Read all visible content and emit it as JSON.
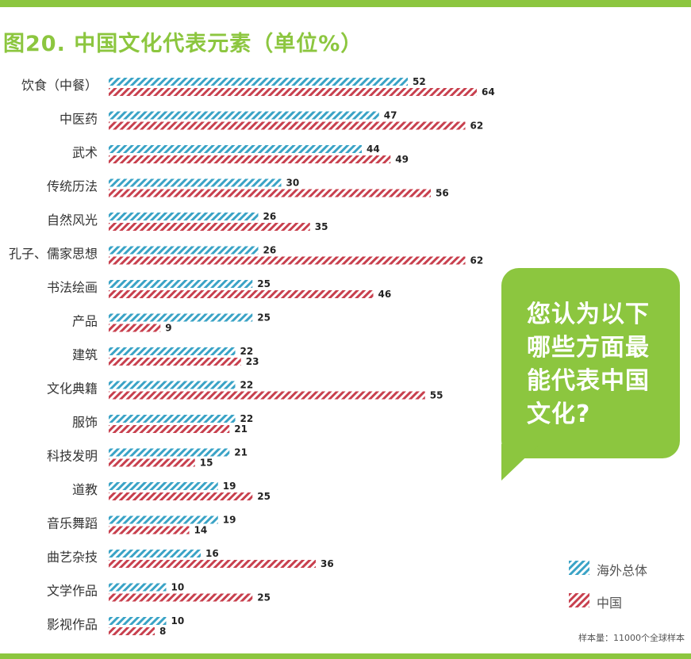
{
  "colors": {
    "accent_green": "#8cc63f",
    "overseas_blue": "#3aa3c6",
    "china_red": "#c8404e",
    "label_text": "#333333",
    "value_text": "#222222"
  },
  "legend": {
    "overseas": "海外总体",
    "china": "中国"
  },
  "callout": {
    "question": "您认为以下哪些方面最能代表中国文化?"
  },
  "footnote": "样本量：11000个全球样本",
  "chart_data": {
    "type": "bar",
    "orientation": "horizontal",
    "title": "图20. 中国文化代表元素（单位%）",
    "xlabel": "",
    "ylabel": "",
    "xlim": [
      0,
      70
    ],
    "grid": false,
    "legend_position": "bottom-right",
    "categories": [
      "饮食（中餐）",
      "中医药",
      "武术",
      "传统历法",
      "自然风光",
      "孔子、儒家思想",
      "书法绘画",
      "产品",
      "建筑",
      "文化典籍",
      "服饰",
      "科技发明",
      "道教",
      "音乐舞蹈",
      "曲艺杂技",
      "文学作品",
      "影视作品"
    ],
    "series": [
      {
        "name": "海外总体",
        "values": [
          52,
          47,
          44,
          30,
          26,
          26,
          25,
          25,
          22,
          22,
          22,
          21,
          19,
          19,
          16,
          10,
          10
        ]
      },
      {
        "name": "中国",
        "values": [
          64,
          62,
          49,
          56,
          35,
          62,
          46,
          9,
          23,
          55,
          21,
          15,
          25,
          14,
          36,
          25,
          8
        ]
      }
    ]
  }
}
